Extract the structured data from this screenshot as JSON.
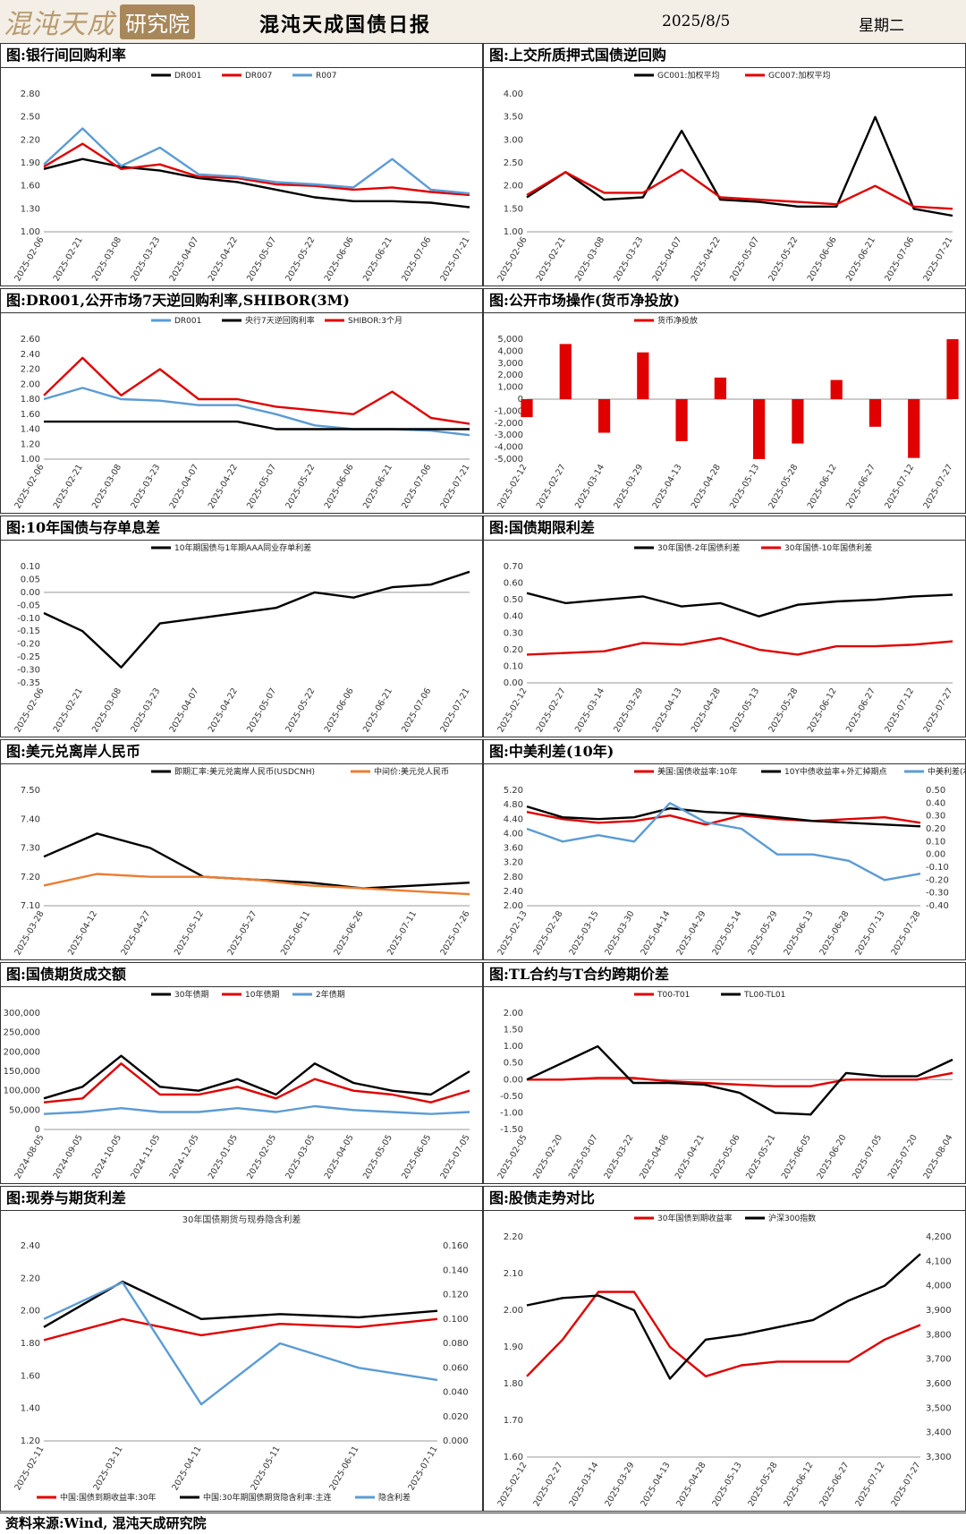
{
  "header": {
    "logo_text": "混沌天成",
    "logo_badge": "研究院",
    "title": "混沌天成国债日报",
    "date": "2025/8/5",
    "weekday": "星期二"
  },
  "footer": {
    "source": "资料来源:Wind, 混沌天成研究院"
  },
  "panels": [
    {
      "title": "图:银行间回购利率"
    },
    {
      "title": "图:上交所质押式国债逆回购"
    },
    {
      "title": "图:DR001,公开市场7天逆回购利率,SHIBOR(3M)"
    },
    {
      "title": "图:公开市场操作(货币净投放)"
    },
    {
      "title": "图:10年国债与存单息差"
    },
    {
      "title": "图:国债期限利差"
    },
    {
      "title": "图:美元兑离岸人民币"
    },
    {
      "title": "图:中美利差(10年)"
    },
    {
      "title": "图:国债期货成交额"
    },
    {
      "title": "图:TL合约与T合约跨期价差"
    },
    {
      "title": "图:现券与期货利差"
    },
    {
      "title": "图:股债走势对比"
    }
  ],
  "chart_data": [
    {
      "type": "line",
      "x": [
        "2025-02-06",
        "2025-02-21",
        "2025-03-08",
        "2025-03-23",
        "2025-04-07",
        "2025-04-22",
        "2025-05-07",
        "2025-05-22",
        "2025-06-06",
        "2025-06-21",
        "2025-07-06",
        "2025-07-21"
      ],
      "yticks": [
        "1.00",
        "1.30",
        "1.60",
        "1.90",
        "2.20",
        "2.50",
        "2.80"
      ],
      "ylim": [
        1.0,
        2.8
      ],
      "series": [
        {
          "name": "DR001",
          "color": "#000000",
          "values": [
            1.82,
            1.95,
            1.85,
            1.8,
            1.7,
            1.65,
            1.55,
            1.45,
            1.4,
            1.4,
            1.38,
            1.32
          ]
        },
        {
          "name": "DR007",
          "color": "#e00000",
          "values": [
            1.85,
            2.15,
            1.82,
            1.88,
            1.72,
            1.7,
            1.62,
            1.6,
            1.55,
            1.58,
            1.52,
            1.48
          ]
        },
        {
          "name": "R007",
          "color": "#5b9bd5",
          "values": [
            1.88,
            2.35,
            1.86,
            2.1,
            1.75,
            1.72,
            1.65,
            1.62,
            1.58,
            1.95,
            1.55,
            1.5
          ]
        }
      ]
    },
    {
      "type": "line",
      "x": [
        "2025-02-06",
        "2025-02-21",
        "2025-03-08",
        "2025-03-23",
        "2025-04-07",
        "2025-04-22",
        "2025-05-07",
        "2025-05-22",
        "2025-06-06",
        "2025-06-21",
        "2025-07-06",
        "2025-07-21"
      ],
      "yticks": [
        "1.00",
        "1.50",
        "2.00",
        "2.50",
        "3.00",
        "3.50",
        "4.00"
      ],
      "ylim": [
        1.0,
        4.0
      ],
      "series": [
        {
          "name": "GC001:加权平均",
          "color": "#000000",
          "values": [
            1.75,
            2.3,
            1.7,
            1.75,
            3.2,
            1.7,
            1.65,
            1.55,
            1.55,
            3.5,
            1.5,
            1.35
          ]
        },
        {
          "name": "GC007:加权平均",
          "color": "#e00000",
          "values": [
            1.8,
            2.3,
            1.85,
            1.85,
            2.35,
            1.75,
            1.7,
            1.65,
            1.6,
            2.0,
            1.55,
            1.5
          ]
        }
      ]
    },
    {
      "type": "line",
      "x": [
        "2025-02-06",
        "2025-02-21",
        "2025-03-08",
        "2025-03-23",
        "2025-04-07",
        "2025-04-22",
        "2025-05-07",
        "2025-05-22",
        "2025-06-06",
        "2025-06-21",
        "2025-07-06",
        "2025-07-21"
      ],
      "yticks": [
        "1.00",
        "1.20",
        "1.40",
        "1.60",
        "1.80",
        "2.00",
        "2.20",
        "2.40",
        "2.60"
      ],
      "ylim": [
        1.0,
        2.6
      ],
      "series": [
        {
          "name": "DR001",
          "color": "#5b9bd5",
          "values": [
            1.8,
            1.95,
            1.8,
            1.78,
            1.72,
            1.72,
            1.6,
            1.45,
            1.4,
            1.4,
            1.38,
            1.32
          ]
        },
        {
          "name": "央行7天逆回购利率",
          "color": "#000000",
          "values": [
            1.5,
            1.5,
            1.5,
            1.5,
            1.5,
            1.5,
            1.4,
            1.4,
            1.4,
            1.4,
            1.4,
            1.4
          ]
        },
        {
          "name": "SHIBOR:3个月",
          "color": "#e00000",
          "values": [
            1.85,
            2.35,
            1.85,
            2.2,
            1.8,
            1.8,
            1.7,
            1.65,
            1.6,
            1.9,
            1.55,
            1.47
          ]
        }
      ]
    },
    {
      "type": "bar",
      "x": [
        "2025-02-12",
        "2025-02-27",
        "2025-03-14",
        "2025-03-29",
        "2025-04-13",
        "2025-04-28",
        "2025-05-13",
        "2025-05-28",
        "2025-06-12",
        "2025-06-27",
        "2025-07-12",
        "2025-07-27"
      ],
      "yticks": [
        "-5,000",
        "-4,000",
        "-3,000",
        "-2,000",
        "-1,000",
        "0",
        "1,000",
        "2,000",
        "3,000",
        "4,000",
        "5,000"
      ],
      "ylim": [
        -5000,
        5000
      ],
      "series": [
        {
          "name": "货币净投放",
          "color": "#e00000",
          "values": [
            -1500,
            4600,
            -2800,
            3900,
            -3500,
            1800,
            -5000,
            -3700,
            1600,
            -2300,
            -4900,
            5000
          ]
        }
      ]
    },
    {
      "type": "line",
      "x": [
        "2025-02-06",
        "2025-02-21",
        "2025-03-08",
        "2025-03-23",
        "2025-04-07",
        "2025-04-22",
        "2025-05-07",
        "2025-05-22",
        "2025-06-06",
        "2025-06-21",
        "2025-07-06",
        "2025-07-21"
      ],
      "yticks": [
        "-0.35",
        "-0.30",
        "-0.25",
        "-0.20",
        "-0.15",
        "-0.10",
        "-0.05",
        "0.00",
        "0.05",
        "0.10"
      ],
      "ylim": [
        -0.35,
        0.1
      ],
      "series": [
        {
          "name": "10年期国债与1年期AAA同业存单利差",
          "color": "#000000",
          "values": [
            -0.08,
            -0.15,
            -0.29,
            -0.12,
            -0.1,
            -0.08,
            -0.06,
            0.0,
            -0.02,
            0.02,
            0.03,
            0.08
          ]
        }
      ]
    },
    {
      "type": "line",
      "x": [
        "2025-02-12",
        "2025-02-27",
        "2025-03-14",
        "2025-03-29",
        "2025-04-13",
        "2025-04-28",
        "2025-05-13",
        "2025-05-28",
        "2025-06-12",
        "2025-06-27",
        "2025-07-12",
        "2025-07-27"
      ],
      "yticks": [
        "0.00",
        "0.10",
        "0.20",
        "0.30",
        "0.40",
        "0.50",
        "0.60",
        "0.70"
      ],
      "ylim": [
        0.0,
        0.7
      ],
      "series": [
        {
          "name": "30年国债-2年国债利差",
          "color": "#000000",
          "values": [
            0.54,
            0.48,
            0.5,
            0.52,
            0.46,
            0.48,
            0.4,
            0.47,
            0.49,
            0.5,
            0.52,
            0.53
          ]
        },
        {
          "name": "30年国债-10年国债利差",
          "color": "#e00000",
          "values": [
            0.17,
            0.18,
            0.19,
            0.24,
            0.23,
            0.27,
            0.2,
            0.17,
            0.22,
            0.22,
            0.23,
            0.25
          ]
        }
      ]
    },
    {
      "type": "line",
      "x": [
        "2025-03-28",
        "2025-04-12",
        "2025-04-27",
        "2025-05-12",
        "2025-05-27",
        "2025-06-11",
        "2025-06-26",
        "2025-07-11",
        "2025-07-26"
      ],
      "yticks": [
        "7.10",
        "7.20",
        "7.30",
        "7.40",
        "7.50"
      ],
      "ylim": [
        7.1,
        7.5
      ],
      "series": [
        {
          "name": "即期汇率:美元兑离岸人民币(USDCNH)",
          "color": "#000000",
          "values": [
            7.27,
            7.35,
            7.3,
            7.2,
            7.19,
            7.18,
            7.16,
            7.17,
            7.18
          ]
        },
        {
          "name": "中间价:美元兑人民币",
          "color": "#ed7d31",
          "values": [
            7.17,
            7.21,
            7.2,
            7.2,
            7.19,
            7.17,
            7.16,
            7.15,
            7.14
          ]
        }
      ]
    },
    {
      "type": "line",
      "x": [
        "2025-02-13",
        "2025-02-28",
        "2025-03-15",
        "2025-03-30",
        "2025-04-14",
        "2025-04-29",
        "2025-05-14",
        "2025-05-29",
        "2025-06-13",
        "2025-06-28",
        "2025-07-13",
        "2025-07-28"
      ],
      "yticks": [
        "2.00",
        "2.40",
        "2.80",
        "3.20",
        "3.60",
        "4.00",
        "4.40",
        "4.80",
        "5.20"
      ],
      "ylim": [
        2.0,
        5.2
      ],
      "y2ticks": [
        "-0.40",
        "-0.30",
        "-0.20",
        "-0.10",
        "0.00",
        "0.10",
        "0.20",
        "0.30",
        "0.40",
        "0.50"
      ],
      "y2lim": [
        -0.4,
        0.5
      ],
      "series": [
        {
          "name": "美国:国债收益率:10年",
          "color": "#e00000",
          "values": [
            4.6,
            4.4,
            4.3,
            4.35,
            4.5,
            4.25,
            4.5,
            4.4,
            4.35,
            4.4,
            4.45,
            4.3
          ]
        },
        {
          "name": "10Y中债收益率+外汇掉期点",
          "color": "#000000",
          "values": [
            4.75,
            4.45,
            4.4,
            4.45,
            4.7,
            4.6,
            4.55,
            4.45,
            4.35,
            4.3,
            4.25,
            4.2
          ]
        },
        {
          "name": "中美利差(右)",
          "color": "#5b9bd5",
          "values": [
            0.2,
            0.1,
            0.15,
            0.1,
            0.4,
            0.25,
            0.2,
            0.0,
            0.0,
            -0.05,
            -0.2,
            -0.15
          ]
        }
      ]
    },
    {
      "type": "line",
      "x": [
        "2024-08-05",
        "2024-09-05",
        "2024-10-05",
        "2024-11-05",
        "2024-12-05",
        "2025-01-05",
        "2025-02-05",
        "2025-03-05",
        "2025-04-05",
        "2025-05-05",
        "2025-06-05",
        "2025-07-05"
      ],
      "yticks": [
        "0",
        "50,000",
        "100,000",
        "150,000",
        "200,000",
        "250,000",
        "300,000"
      ],
      "ylim": [
        0,
        300000
      ],
      "series": [
        {
          "name": "30年债期",
          "color": "#000000",
          "values": [
            80000,
            110000,
            190000,
            110000,
            100000,
            130000,
            90000,
            170000,
            120000,
            100000,
            90000,
            150000
          ]
        },
        {
          "name": "10年债期",
          "color": "#e00000",
          "values": [
            70000,
            80000,
            170000,
            90000,
            90000,
            110000,
            80000,
            130000,
            100000,
            90000,
            70000,
            100000
          ]
        },
        {
          "name": "2年债期",
          "color": "#5b9bd5",
          "values": [
            40000,
            45000,
            55000,
            45000,
            45000,
            55000,
            45000,
            60000,
            50000,
            45000,
            40000,
            45000
          ]
        }
      ]
    },
    {
      "type": "line",
      "x": [
        "2025-02-05",
        "2025-02-20",
        "2025-03-07",
        "2025-03-22",
        "2025-04-06",
        "2025-04-21",
        "2025-05-06",
        "2025-05-21",
        "2025-06-05",
        "2025-06-20",
        "2025-07-05",
        "2025-07-20",
        "2025-08-04"
      ],
      "yticks": [
        "-1.50",
        "-1.00",
        "-0.50",
        "0.00",
        "0.50",
        "1.00",
        "1.50",
        "2.00"
      ],
      "ylim": [
        -1.5,
        2.0
      ],
      "series": [
        {
          "name": "T00-T01",
          "color": "#e00000",
          "values": [
            0.0,
            0.0,
            0.05,
            0.05,
            -0.05,
            -0.1,
            -0.15,
            -0.2,
            -0.2,
            0.0,
            0.0,
            0.0,
            0.2
          ]
        },
        {
          "name": "TL00-TL01",
          "color": "#000000",
          "values": [
            0.0,
            0.5,
            1.0,
            -0.1,
            -0.1,
            -0.15,
            -0.4,
            -1.0,
            -1.05,
            0.2,
            0.1,
            0.1,
            0.6
          ]
        }
      ]
    },
    {
      "type": "line",
      "title": "30年国债期货与现券隐含利差",
      "x": [
        "2025-02-11",
        "2025-03-11",
        "2025-04-11",
        "2025-05-11",
        "2025-06-11",
        "2025-07-11"
      ],
      "yticks": [
        "1.20",
        "1.40",
        "1.60",
        "1.80",
        "2.00",
        "2.20",
        "2.40"
      ],
      "ylim": [
        1.2,
        2.4
      ],
      "y2ticks": [
        "0.000",
        "0.020",
        "0.040",
        "0.060",
        "0.080",
        "0.100",
        "0.120",
        "0.140",
        "0.160"
      ],
      "y2lim": [
        0.0,
        0.16
      ],
      "series": [
        {
          "name": "中国:国债到期收益率:30年",
          "color": "#e00000",
          "values": [
            1.82,
            1.95,
            1.85,
            1.92,
            1.9,
            1.95
          ]
        },
        {
          "name": "中国:30年期国债期货隐含利率:主连",
          "color": "#000000",
          "values": [
            1.9,
            2.18,
            1.95,
            1.98,
            1.96,
            2.0
          ]
        },
        {
          "name": "隐含利差",
          "color": "#5b9bd5",
          "values": [
            0.1,
            0.13,
            0.03,
            0.08,
            0.06,
            0.05
          ]
        }
      ]
    },
    {
      "type": "line",
      "x": [
        "2025-02-12",
        "2025-02-27",
        "2025-03-14",
        "2025-03-29",
        "2025-04-13",
        "2025-04-28",
        "2025-05-13",
        "2025-05-28",
        "2025-06-12",
        "2025-06-27",
        "2025-07-12",
        "2025-07-27"
      ],
      "yticks": [
        "1.60",
        "1.70",
        "1.80",
        "1.90",
        "2.00",
        "2.10",
        "2.20"
      ],
      "ylim": [
        1.6,
        2.2
      ],
      "y2ticks": [
        "3,300",
        "3,400",
        "3,500",
        "3,600",
        "3,700",
        "3,800",
        "3,900",
        "4,000",
        "4,100",
        "4,200"
      ],
      "y2lim": [
        3300,
        4200
      ],
      "series": [
        {
          "name": "30年国债到期收益率",
          "color": "#e00000",
          "values": [
            1.82,
            1.92,
            2.05,
            2.05,
            1.9,
            1.82,
            1.85,
            1.86,
            1.86,
            1.86,
            1.92,
            1.96
          ]
        },
        {
          "name": "沪深300指数",
          "color": "#000000",
          "values": [
            3920,
            3950,
            3960,
            3900,
            3620,
            3780,
            3800,
            3830,
            3860,
            3940,
            4000,
            4130
          ]
        }
      ]
    }
  ]
}
